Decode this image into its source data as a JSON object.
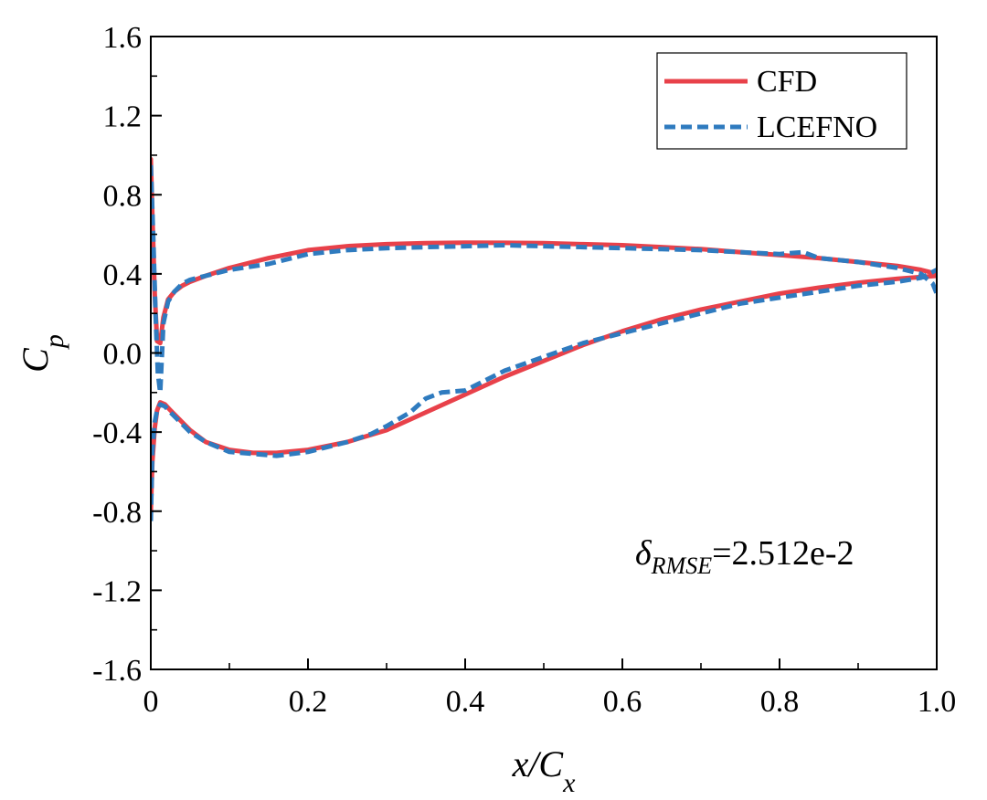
{
  "chart_data": {
    "type": "line",
    "xlabel": "x/C_x",
    "ylabel": "C_p",
    "xlim": [
      0,
      1.0
    ],
    "ylim": [
      -1.6,
      1.6
    ],
    "x_ticks": [
      "0",
      "0.2",
      "0.4",
      "0.6",
      "0.8",
      "1.0"
    ],
    "y_ticks": [
      "-1.6",
      "-1.2",
      "-0.8",
      "-0.4",
      "0.0",
      "0.4",
      "0.8",
      "1.2",
      "1.6"
    ],
    "legend_position": "top-right",
    "annotation": "δRMSE=2.512e-2",
    "series": [
      {
        "name": "CFD",
        "color": "#e8414a",
        "style": "solid",
        "x": [
          0.0,
          0.002,
          0.005,
          0.008,
          0.012,
          0.016,
          0.022,
          0.03,
          0.04,
          0.05,
          0.07,
          0.1,
          0.15,
          0.2,
          0.25,
          0.3,
          0.35,
          0.4,
          0.45,
          0.5,
          0.55,
          0.6,
          0.65,
          0.7,
          0.75,
          0.8,
          0.85,
          0.9,
          0.95,
          0.98,
          1.0,
          null,
          0.0,
          0.002,
          0.005,
          0.008,
          0.012,
          0.018,
          0.025,
          0.035,
          0.05,
          0.07,
          0.1,
          0.13,
          0.16,
          0.2,
          0.25,
          0.3,
          0.35,
          0.4,
          0.45,
          0.5,
          0.55,
          0.6,
          0.65,
          0.7,
          0.75,
          0.8,
          0.85,
          0.9,
          0.95,
          1.0
        ],
        "y": [
          0.98,
          0.7,
          0.3,
          0.06,
          0.05,
          0.18,
          0.27,
          0.31,
          0.34,
          0.36,
          0.39,
          0.43,
          0.48,
          0.52,
          0.54,
          0.55,
          0.555,
          0.558,
          0.557,
          0.555,
          0.55,
          0.545,
          0.535,
          0.525,
          0.51,
          0.495,
          0.48,
          0.46,
          0.44,
          0.42,
          0.4,
          null,
          -0.8,
          -0.55,
          -0.38,
          -0.29,
          -0.25,
          -0.26,
          -0.29,
          -0.33,
          -0.39,
          -0.45,
          -0.49,
          -0.505,
          -0.505,
          -0.49,
          -0.45,
          -0.39,
          -0.3,
          -0.21,
          -0.12,
          -0.04,
          0.04,
          0.11,
          0.17,
          0.22,
          0.26,
          0.3,
          0.33,
          0.355,
          0.375,
          0.39
        ]
      },
      {
        "name": "LCEFNO",
        "color": "#2f7bbf",
        "style": "dashed",
        "x": [
          0.0,
          0.003,
          0.006,
          0.009,
          0.012,
          0.016,
          0.022,
          0.03,
          0.04,
          0.05,
          0.07,
          0.1,
          0.15,
          0.2,
          0.25,
          0.3,
          0.35,
          0.4,
          0.45,
          0.5,
          0.55,
          0.6,
          0.65,
          0.7,
          0.75,
          0.8,
          0.83,
          0.85,
          0.9,
          0.95,
          0.98,
          0.995,
          1.0,
          null,
          0.0,
          0.002,
          0.005,
          0.008,
          0.012,
          0.018,
          0.025,
          0.035,
          0.05,
          0.07,
          0.1,
          0.13,
          0.16,
          0.2,
          0.25,
          0.28,
          0.3,
          0.33,
          0.35,
          0.37,
          0.4,
          0.45,
          0.5,
          0.55,
          0.6,
          0.65,
          0.7,
          0.75,
          0.8,
          0.85,
          0.9,
          0.95,
          0.98,
          1.0
        ],
        "y": [
          0.95,
          0.6,
          0.2,
          -0.1,
          -0.2,
          0.15,
          0.26,
          0.31,
          0.35,
          0.37,
          0.39,
          0.42,
          0.45,
          0.5,
          0.52,
          0.53,
          0.535,
          0.54,
          0.545,
          0.54,
          0.535,
          0.53,
          0.525,
          0.52,
          0.51,
          0.5,
          0.51,
          0.48,
          0.46,
          0.43,
          0.4,
          0.35,
          0.3,
          null,
          -0.85,
          -0.5,
          -0.35,
          -0.29,
          -0.26,
          -0.27,
          -0.3,
          -0.34,
          -0.4,
          -0.45,
          -0.5,
          -0.51,
          -0.52,
          -0.5,
          -0.45,
          -0.41,
          -0.37,
          -0.3,
          -0.23,
          -0.2,
          -0.19,
          -0.09,
          -0.02,
          0.05,
          0.1,
          0.15,
          0.2,
          0.25,
          0.28,
          0.31,
          0.34,
          0.36,
          0.38,
          0.42
        ]
      }
    ]
  }
}
